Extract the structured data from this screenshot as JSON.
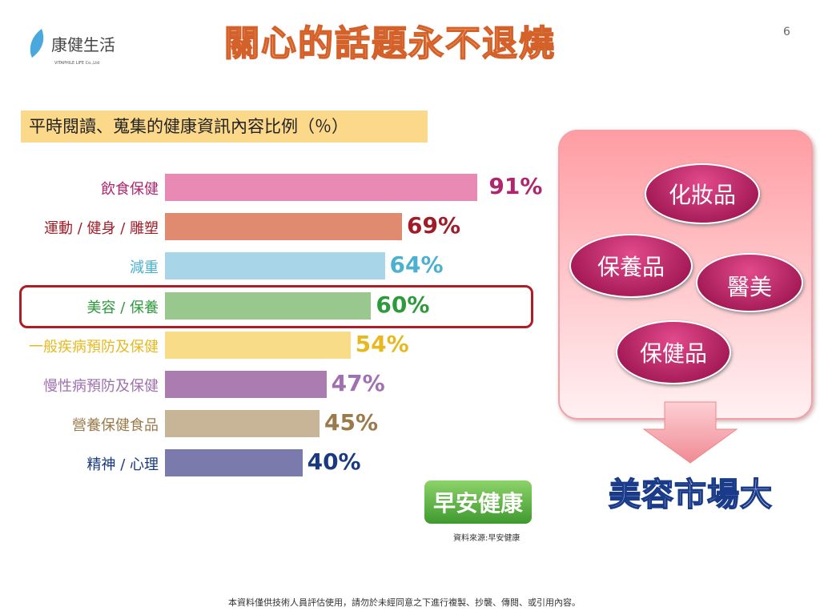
{
  "header": {
    "title": "關心的話題永不退燒",
    "page_number": "6",
    "logo_name": "康健生活",
    "logo_sub": "VITAPHILE LIFE Co.,Ltd"
  },
  "chart_data": {
    "type": "bar",
    "orientation": "horizontal",
    "title": "平時閱讀、蒐集的健康資訊內容比例（％）",
    "categories": [
      "飲食保健",
      "運動 / 健身 / 雕塑",
      "減重",
      "美容 / 保養",
      "一般疾病預防及保健",
      "慢性病預防及保健",
      "營養保健食品",
      "精神 / 心理"
    ],
    "values": [
      91,
      69,
      64,
      60,
      54,
      47,
      45,
      40
    ],
    "value_labels": [
      "91%",
      "69%",
      "64%",
      "60%",
      "54%",
      "47%",
      "45%",
      "40%"
    ],
    "highlighted": "美容 / 保養",
    "bar_colors": [
      "#e88ab4",
      "#e08a70",
      "#a8d6e8",
      "#98c88e",
      "#f8dc88",
      "#aa7cb0",
      "#c8b496",
      "#7a7aac"
    ],
    "label_colors": [
      "#b0266e",
      "#a01c28",
      "#4cb0d0",
      "#2e9a3c",
      "#e8b820",
      "#a070b0",
      "#9a7a4a",
      "#1a3a80"
    ]
  },
  "panel": {
    "bubbles": [
      "化妝品",
      "保養品",
      "醫美",
      "保健品"
    ],
    "conclusion": "美容市場大"
  },
  "brand": "早安健康",
  "source": "資料來源:早安健康",
  "footer": "本資料僅供技術人員評估使用，請勿於未經同意之下進行複製、抄襲、傳閱、或引用內容。"
}
